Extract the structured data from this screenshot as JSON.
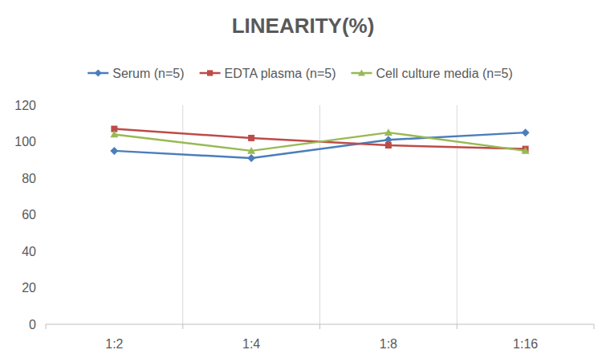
{
  "chart_data": {
    "type": "line",
    "title": "LINEARITY(%)",
    "categories": [
      "1:2",
      "1:4",
      "1:8",
      "1:16"
    ],
    "series": [
      {
        "name": "Serum (n=5)",
        "color": "#4a7ebb",
        "marker": "diamond",
        "values": [
          95,
          91,
          101,
          105
        ]
      },
      {
        "name": "EDTA plasma (n=5)",
        "color": "#be4b48",
        "marker": "square",
        "values": [
          107,
          102,
          98,
          96
        ]
      },
      {
        "name": "Cell culture media (n=5)",
        "color": "#98b954",
        "marker": "triangle",
        "values": [
          104,
          95,
          105,
          95
        ]
      }
    ],
    "ylim": [
      0,
      120
    ],
    "yticks": [
      0,
      20,
      40,
      60,
      80,
      100,
      120
    ],
    "grid": true,
    "legend": "top"
  }
}
